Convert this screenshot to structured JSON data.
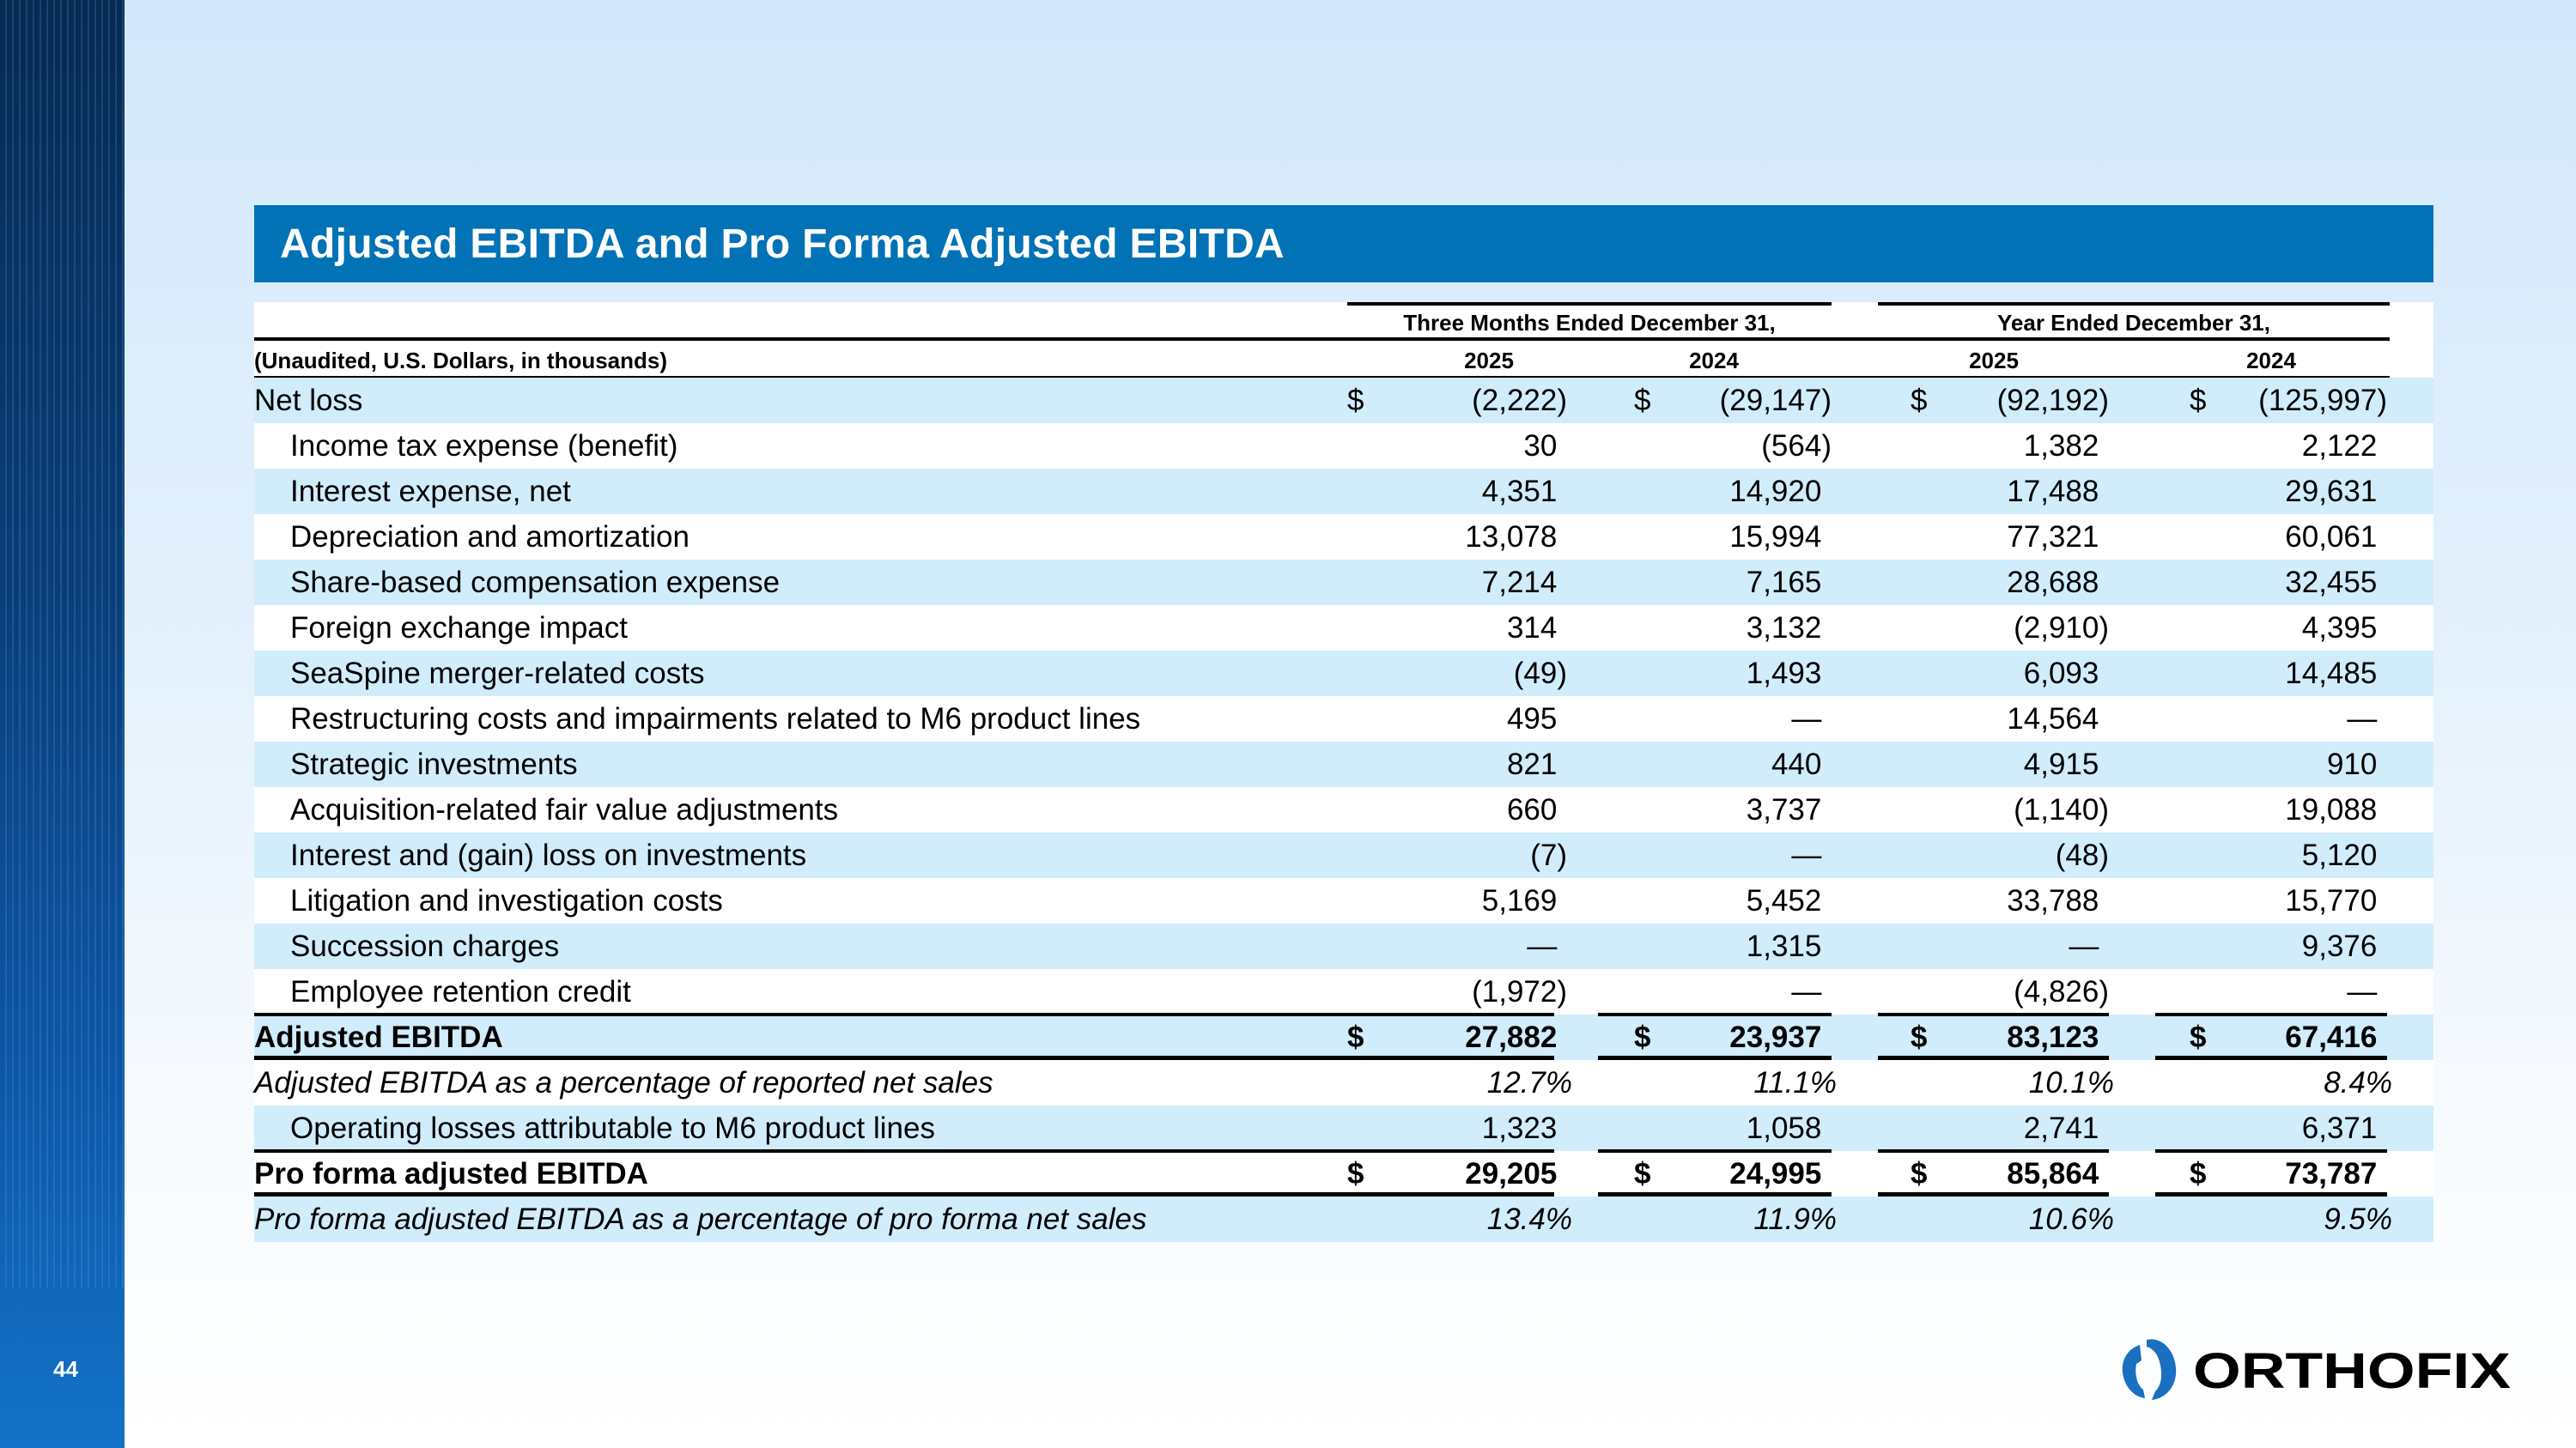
{
  "slide": {
    "title": "Adjusted EBITDA and Pro Forma Adjusted EBITDA",
    "page_number": "44",
    "logo_text": "ORTHOFIX",
    "brand_color": "#0072b5"
  },
  "table": {
    "units_label": "(Unaudited, U.S. Dollars, in thousands)",
    "groups": [
      "Three Months Ended December 31,",
      "Year Ended December 31,"
    ],
    "years": [
      "2025",
      "2024",
      "2025",
      "2024"
    ],
    "rows": [
      {
        "label": "Net loss",
        "indent": false,
        "style": "normal",
        "dollar": true,
        "values": [
          "(2,222)",
          "(29,147)",
          "(92,192)",
          "(125,997)"
        ]
      },
      {
        "label": "Income tax expense (benefit)",
        "indent": true,
        "style": "normal",
        "values": [
          "30",
          "(564)",
          "1,382",
          "2,122"
        ]
      },
      {
        "label": "Interest expense, net",
        "indent": true,
        "style": "normal",
        "values": [
          "4,351",
          "14,920",
          "17,488",
          "29,631"
        ]
      },
      {
        "label": "Depreciation and amortization",
        "indent": true,
        "style": "normal",
        "values": [
          "13,078",
          "15,994",
          "77,321",
          "60,061"
        ]
      },
      {
        "label": "Share-based compensation expense",
        "indent": true,
        "style": "normal",
        "values": [
          "7,214",
          "7,165",
          "28,688",
          "32,455"
        ]
      },
      {
        "label": "Foreign exchange impact",
        "indent": true,
        "style": "normal",
        "values": [
          "314",
          "3,132",
          "(2,910)",
          "4,395"
        ]
      },
      {
        "label": "SeaSpine merger-related costs",
        "indent": true,
        "style": "normal",
        "values": [
          "(49)",
          "1,493",
          "6,093",
          "14,485"
        ]
      },
      {
        "label": "Restructuring costs and impairments related to M6 product lines",
        "indent": true,
        "style": "normal",
        "values": [
          "495",
          "—",
          "14,564",
          "—"
        ]
      },
      {
        "label": "Strategic investments",
        "indent": true,
        "style": "normal",
        "values": [
          "821",
          "440",
          "4,915",
          "910"
        ]
      },
      {
        "label": "Acquisition-related fair value adjustments",
        "indent": true,
        "style": "normal",
        "values": [
          "660",
          "3,737",
          "(1,140)",
          "19,088"
        ]
      },
      {
        "label": "Interest and (gain) loss on investments",
        "indent": true,
        "style": "normal",
        "values": [
          "(7)",
          "—",
          "(48)",
          "5,120"
        ]
      },
      {
        "label": "Litigation and investigation costs",
        "indent": true,
        "style": "normal",
        "values": [
          "5,169",
          "5,452",
          "33,788",
          "15,770"
        ]
      },
      {
        "label": "Succession charges",
        "indent": true,
        "style": "normal",
        "values": [
          "—",
          "1,315",
          "—",
          "9,376"
        ]
      },
      {
        "label": "Employee retention credit",
        "indent": true,
        "style": "normal",
        "values": [
          "(1,972)",
          "—",
          "(4,826)",
          "—"
        ]
      },
      {
        "label": "Adjusted EBITDA",
        "indent": false,
        "style": "bold",
        "dollar": true,
        "values": [
          "27,882",
          "23,937",
          "83,123",
          "67,416"
        ]
      },
      {
        "label": "Adjusted EBITDA as a percentage of reported net sales",
        "indent": false,
        "style": "italic",
        "pct": true,
        "values": [
          "12.7%",
          "11.1%",
          "10.1%",
          "8.4%"
        ]
      },
      {
        "label": "Operating losses attributable to M6 product lines",
        "indent": true,
        "style": "normal",
        "values": [
          "1,323",
          "1,058",
          "2,741",
          "6,371"
        ]
      },
      {
        "label": "Pro forma adjusted EBITDA",
        "indent": false,
        "style": "bold",
        "dollar": true,
        "values": [
          "29,205",
          "24,995",
          "85,864",
          "73,787"
        ]
      },
      {
        "label": "Pro forma adjusted EBITDA as a percentage of pro forma net sales",
        "indent": false,
        "style": "italic",
        "pct": true,
        "values": [
          "13.4%",
          "11.9%",
          "10.6%",
          "9.5%"
        ]
      }
    ],
    "currency_symbol": "$"
  }
}
